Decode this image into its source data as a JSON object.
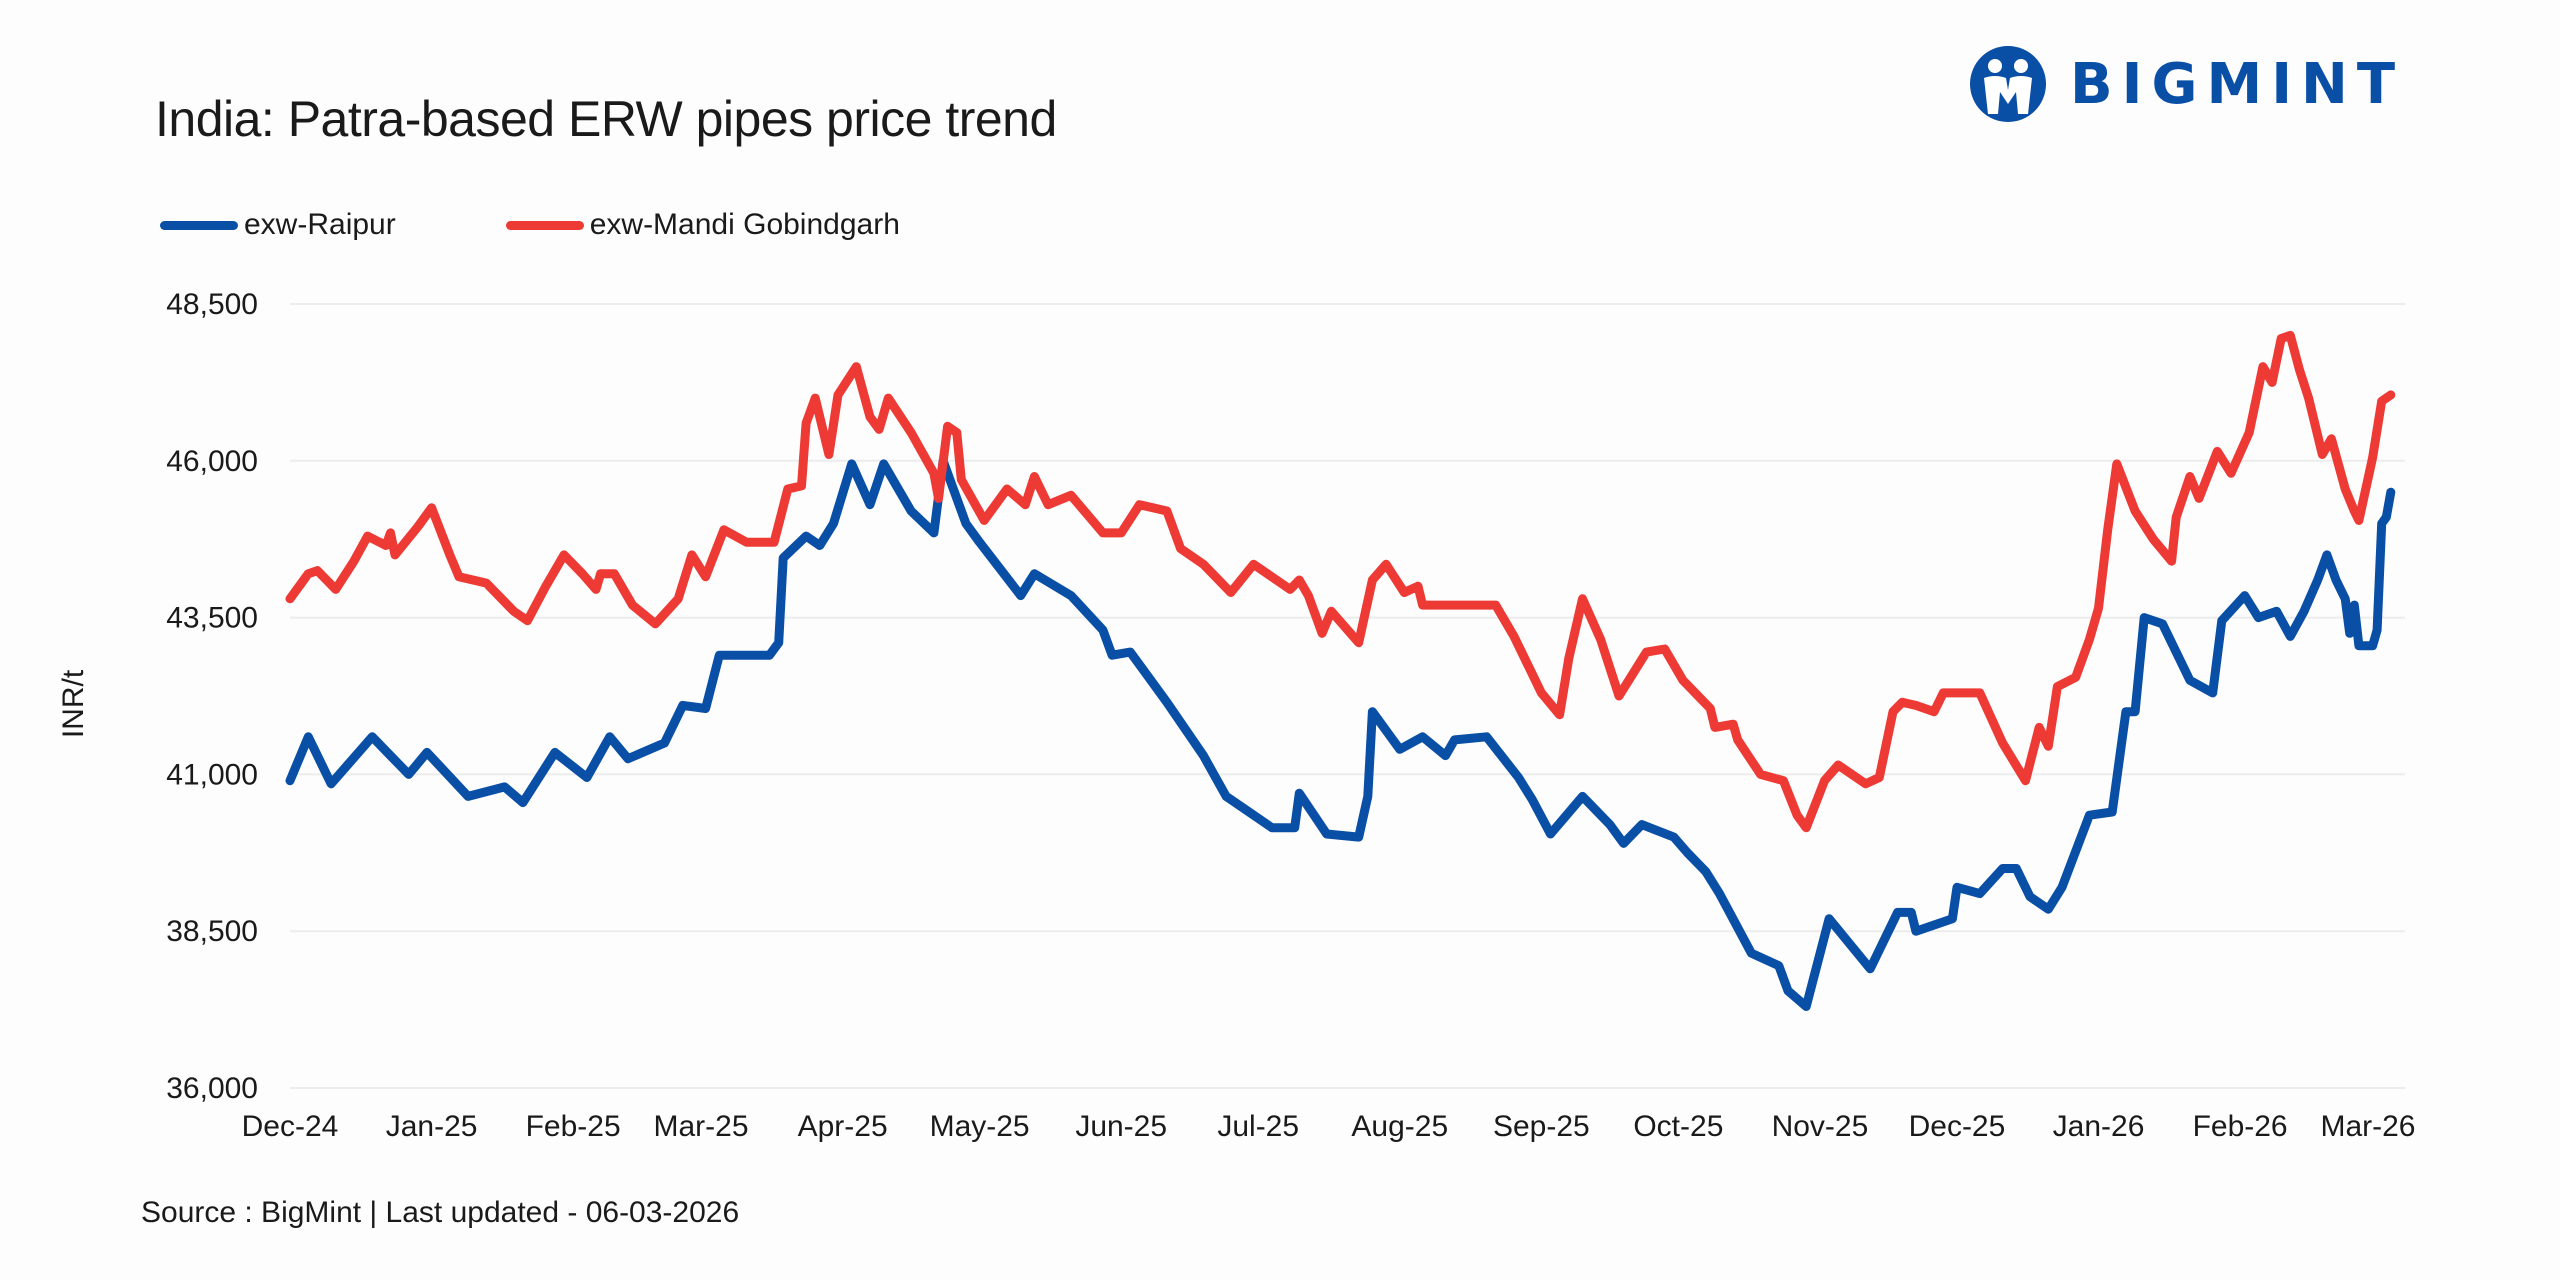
{
  "header": {
    "title": "India: Patra-based ERW pipes price trend"
  },
  "logo": {
    "text": "BIGMINT",
    "color": "#0a4fa6"
  },
  "footer": {
    "source": "Source : BigMint | Last updated - 06-03-2026"
  },
  "chart_data": {
    "type": "line",
    "title": "India: Patra-based ERW pipes price trend",
    "xlabel": "",
    "ylabel": "INR/t",
    "ylim": [
      36000,
      48500
    ],
    "yticks": [
      36000,
      38500,
      41000,
      43500,
      46000,
      48500
    ],
    "ytick_labels": [
      "36,000",
      "38,500",
      "41,000",
      "43,500",
      "46,000",
      "48,500"
    ],
    "xlim": [
      "2024-12-01",
      "2026-03-06"
    ],
    "xticks": [
      "2024-12-01",
      "2025-01-01",
      "2025-02-01",
      "2025-03-01",
      "2025-04-01",
      "2025-05-01",
      "2025-06-01",
      "2025-07-01",
      "2025-08-01",
      "2025-09-01",
      "2025-10-01",
      "2025-11-01",
      "2025-12-01",
      "2026-01-01",
      "2026-02-01",
      "2026-03-01"
    ],
    "xtick_labels": [
      "Dec-24",
      "Jan-25",
      "Feb-25",
      "Mar-25",
      "Apr-25",
      "May-25",
      "Jun-25",
      "Jul-25",
      "Aug-25",
      "Sep-25",
      "Oct-25",
      "Nov-25",
      "Dec-25",
      "Jan-26",
      "Feb-26",
      "Mar-26"
    ],
    "grid": "horizontal",
    "legend": "top-left",
    "series": [
      {
        "name": "exw-Raipur",
        "color": "#0a4fa6",
        "points": [
          [
            "2024-12-01",
            40900
          ],
          [
            "2024-12-05",
            41600
          ],
          [
            "2024-12-10",
            40850
          ],
          [
            "2024-12-19",
            41600
          ],
          [
            "2024-12-27",
            41000
          ],
          [
            "2024-12-31",
            41350
          ],
          [
            "2025-01-09",
            40650
          ],
          [
            "2025-01-17",
            40800
          ],
          [
            "2025-01-21",
            40550
          ],
          [
            "2025-01-28",
            41350
          ],
          [
            "2025-02-04",
            40950
          ],
          [
            "2025-02-09",
            41600
          ],
          [
            "2025-02-13",
            41250
          ],
          [
            "2025-02-21",
            41500
          ],
          [
            "2025-02-25",
            42100
          ],
          [
            "2025-03-02",
            42050
          ],
          [
            "2025-03-05",
            42900
          ],
          [
            "2025-03-16",
            42900
          ],
          [
            "2025-03-18",
            43100
          ],
          [
            "2025-03-19",
            44450
          ],
          [
            "2025-03-24",
            44800
          ],
          [
            "2025-03-27",
            44650
          ],
          [
            "2025-03-30",
            45000
          ],
          [
            "2025-04-03",
            45950
          ],
          [
            "2025-04-07",
            45300
          ],
          [
            "2025-04-10",
            45950
          ],
          [
            "2025-04-16",
            45200
          ],
          [
            "2025-04-21",
            44850
          ],
          [
            "2025-04-23",
            46000
          ],
          [
            "2025-04-28",
            45000
          ],
          [
            "2025-05-01",
            44700
          ],
          [
            "2025-05-10",
            43850
          ],
          [
            "2025-05-13",
            44200
          ],
          [
            "2025-05-21",
            43850
          ],
          [
            "2025-05-28",
            43300
          ],
          [
            "2025-05-30",
            42900
          ],
          [
            "2025-06-03",
            42950
          ],
          [
            "2025-06-11",
            42150
          ],
          [
            "2025-06-19",
            41300
          ],
          [
            "2025-06-24",
            40650
          ],
          [
            "2025-06-28",
            40450
          ],
          [
            "2025-07-04",
            40150
          ],
          [
            "2025-07-09",
            40150
          ],
          [
            "2025-07-10",
            40700
          ],
          [
            "2025-07-16",
            40050
          ],
          [
            "2025-07-23",
            40000
          ],
          [
            "2025-07-25",
            40650
          ],
          [
            "2025-07-26",
            42000
          ],
          [
            "2025-08-01",
            41400
          ],
          [
            "2025-08-06",
            41600
          ],
          [
            "2025-08-11",
            41300
          ],
          [
            "2025-08-13",
            41550
          ],
          [
            "2025-08-20",
            41600
          ],
          [
            "2025-08-27",
            40950
          ],
          [
            "2025-08-30",
            40600
          ],
          [
            "2025-09-03",
            40050
          ],
          [
            "2025-09-10",
            40650
          ],
          [
            "2025-09-16",
            40200
          ],
          [
            "2025-09-19",
            39900
          ],
          [
            "2025-09-23",
            40200
          ],
          [
            "2025-09-30",
            40000
          ],
          [
            "2025-10-03",
            39750
          ],
          [
            "2025-10-07",
            39450
          ],
          [
            "2025-10-10",
            39100
          ],
          [
            "2025-10-17",
            38150
          ],
          [
            "2025-10-23",
            37950
          ],
          [
            "2025-10-25",
            37550
          ],
          [
            "2025-10-29",
            37300
          ],
          [
            "2025-11-03",
            38700
          ],
          [
            "2025-11-12",
            37900
          ],
          [
            "2025-11-18",
            38800
          ],
          [
            "2025-11-21",
            38800
          ],
          [
            "2025-11-22",
            38500
          ],
          [
            "2025-11-30",
            38700
          ],
          [
            "2025-12-01",
            39200
          ],
          [
            "2025-12-06",
            39100
          ],
          [
            "2025-12-11",
            39500
          ],
          [
            "2025-12-14",
            39500
          ],
          [
            "2025-12-17",
            39050
          ],
          [
            "2025-12-21",
            38850
          ],
          [
            "2025-12-24",
            39200
          ],
          [
            "2025-12-30",
            40350
          ],
          [
            "2026-01-04",
            40400
          ],
          [
            "2026-01-07",
            42000
          ],
          [
            "2026-01-09",
            42000
          ],
          [
            "2026-01-11",
            43500
          ],
          [
            "2026-01-15",
            43400
          ],
          [
            "2026-01-21",
            42500
          ],
          [
            "2026-01-26",
            42300
          ],
          [
            "2026-01-28",
            43450
          ],
          [
            "2026-02-02",
            43850
          ],
          [
            "2026-02-05",
            43500
          ],
          [
            "2026-02-09",
            43600
          ],
          [
            "2026-02-12",
            43200
          ],
          [
            "2026-02-15",
            43600
          ],
          [
            "2026-02-18",
            44100
          ],
          [
            "2026-02-20",
            44500
          ],
          [
            "2026-02-22",
            44100
          ],
          [
            "2026-02-24",
            43800
          ],
          [
            "2026-02-25",
            43250
          ],
          [
            "2026-02-26",
            43700
          ],
          [
            "2026-02-27",
            43050
          ],
          [
            "2026-03-02",
            43050
          ],
          [
            "2026-03-03",
            43300
          ],
          [
            "2026-03-04",
            45000
          ],
          [
            "2026-03-05",
            45100
          ],
          [
            "2026-03-06",
            45500
          ]
        ]
      },
      {
        "name": "exw-Mandi Gobindgarh",
        "color": "#ee3a35",
        "points": [
          [
            "2024-12-01",
            43800
          ],
          [
            "2024-12-05",
            44200
          ],
          [
            "2024-12-07",
            44250
          ],
          [
            "2024-12-11",
            43950
          ],
          [
            "2024-12-15",
            44400
          ],
          [
            "2024-12-18",
            44800
          ],
          [
            "2024-12-22",
            44650
          ],
          [
            "2024-12-23",
            44850
          ],
          [
            "2024-12-24",
            44500
          ],
          [
            "2024-12-29",
            44950
          ],
          [
            "2025-01-01",
            45250
          ],
          [
            "2025-01-05",
            44500
          ],
          [
            "2025-01-07",
            44150
          ],
          [
            "2025-01-13",
            44050
          ],
          [
            "2025-01-19",
            43600
          ],
          [
            "2025-01-22",
            43450
          ],
          [
            "2025-01-26",
            44000
          ],
          [
            "2025-01-30",
            44500
          ],
          [
            "2025-02-03",
            44200
          ],
          [
            "2025-02-06",
            43950
          ],
          [
            "2025-02-07",
            44200
          ],
          [
            "2025-02-10",
            44200
          ],
          [
            "2025-02-14",
            43700
          ],
          [
            "2025-02-19",
            43400
          ],
          [
            "2025-02-24",
            43800
          ],
          [
            "2025-02-27",
            44500
          ],
          [
            "2025-03-02",
            44150
          ],
          [
            "2025-03-06",
            44900
          ],
          [
            "2025-03-11",
            44700
          ],
          [
            "2025-03-17",
            44700
          ],
          [
            "2025-03-20",
            45550
          ],
          [
            "2025-03-23",
            45600
          ],
          [
            "2025-03-24",
            46600
          ],
          [
            "2025-03-26",
            47000
          ],
          [
            "2025-03-29",
            46100
          ],
          [
            "2025-03-31",
            47050
          ],
          [
            "2025-04-04",
            47500
          ],
          [
            "2025-04-07",
            46700
          ],
          [
            "2025-04-09",
            46500
          ],
          [
            "2025-04-11",
            47000
          ],
          [
            "2025-04-16",
            46450
          ],
          [
            "2025-04-21",
            45800
          ],
          [
            "2025-04-22",
            45400
          ],
          [
            "2025-04-24",
            46550
          ],
          [
            "2025-04-26",
            46450
          ],
          [
            "2025-04-27",
            45700
          ],
          [
            "2025-05-02",
            45050
          ],
          [
            "2025-05-07",
            45550
          ],
          [
            "2025-05-11",
            45300
          ],
          [
            "2025-05-13",
            45750
          ],
          [
            "2025-05-16",
            45300
          ],
          [
            "2025-05-21",
            45450
          ],
          [
            "2025-05-28",
            44850
          ],
          [
            "2025-06-01",
            44850
          ],
          [
            "2025-06-05",
            45300
          ],
          [
            "2025-06-11",
            45200
          ],
          [
            "2025-06-14",
            44600
          ],
          [
            "2025-06-19",
            44350
          ],
          [
            "2025-06-25",
            43900
          ],
          [
            "2025-06-30",
            44350
          ],
          [
            "2025-07-08",
            43950
          ],
          [
            "2025-07-10",
            44100
          ],
          [
            "2025-07-12",
            43850
          ],
          [
            "2025-07-15",
            43250
          ],
          [
            "2025-07-17",
            43600
          ],
          [
            "2025-07-23",
            43100
          ],
          [
            "2025-07-26",
            44100
          ],
          [
            "2025-07-29",
            44350
          ],
          [
            "2025-08-02",
            43900
          ],
          [
            "2025-08-05",
            44000
          ],
          [
            "2025-08-06",
            43700
          ],
          [
            "2025-08-22",
            43700
          ],
          [
            "2025-08-26",
            43200
          ],
          [
            "2025-08-29",
            42750
          ],
          [
            "2025-09-01",
            42300
          ],
          [
            "2025-09-05",
            41950
          ],
          [
            "2025-09-07",
            42850
          ],
          [
            "2025-09-10",
            43800
          ],
          [
            "2025-09-14",
            43150
          ],
          [
            "2025-09-18",
            42250
          ],
          [
            "2025-09-24",
            42950
          ],
          [
            "2025-09-28",
            43000
          ],
          [
            "2025-10-02",
            42500
          ],
          [
            "2025-10-08",
            42050
          ],
          [
            "2025-10-09",
            41750
          ],
          [
            "2025-10-13",
            41800
          ],
          [
            "2025-10-14",
            41550
          ],
          [
            "2025-10-19",
            41000
          ],
          [
            "2025-10-24",
            40900
          ],
          [
            "2025-10-27",
            40350
          ],
          [
            "2025-10-29",
            40150
          ],
          [
            "2025-11-02",
            40900
          ],
          [
            "2025-11-05",
            41150
          ],
          [
            "2025-11-11",
            40850
          ],
          [
            "2025-11-14",
            40950
          ],
          [
            "2025-11-17",
            42000
          ],
          [
            "2025-11-19",
            42150
          ],
          [
            "2025-11-22",
            42100
          ],
          [
            "2025-11-26",
            42000
          ],
          [
            "2025-11-28",
            42300
          ],
          [
            "2025-12-06",
            42300
          ],
          [
            "2025-12-11",
            41500
          ],
          [
            "2025-12-16",
            40900
          ],
          [
            "2025-12-19",
            41750
          ],
          [
            "2025-12-21",
            41450
          ],
          [
            "2025-12-23",
            42400
          ],
          [
            "2025-12-27",
            42550
          ],
          [
            "2025-12-30",
            43150
          ],
          [
            "2026-01-01",
            43650
          ],
          [
            "2026-01-03",
            44900
          ],
          [
            "2026-01-05",
            45950
          ],
          [
            "2026-01-09",
            45200
          ],
          [
            "2026-01-13",
            44750
          ],
          [
            "2026-01-17",
            44400
          ],
          [
            "2026-01-18",
            45100
          ],
          [
            "2026-01-21",
            45750
          ],
          [
            "2026-01-23",
            45400
          ],
          [
            "2026-01-27",
            46150
          ],
          [
            "2026-01-30",
            45800
          ],
          [
            "2026-02-03",
            46450
          ],
          [
            "2026-02-06",
            47500
          ],
          [
            "2026-02-08",
            47250
          ],
          [
            "2026-02-10",
            47950
          ],
          [
            "2026-02-12",
            48000
          ],
          [
            "2026-02-14",
            47450
          ],
          [
            "2026-02-16",
            47000
          ],
          [
            "2026-02-19",
            46100
          ],
          [
            "2026-02-21",
            46350
          ],
          [
            "2026-02-24",
            45550
          ],
          [
            "2026-02-26",
            45200
          ],
          [
            "2026-02-27",
            45050
          ],
          [
            "2026-03-02",
            46050
          ],
          [
            "2026-03-04",
            46950
          ],
          [
            "2026-03-06",
            47050
          ]
        ]
      }
    ]
  }
}
